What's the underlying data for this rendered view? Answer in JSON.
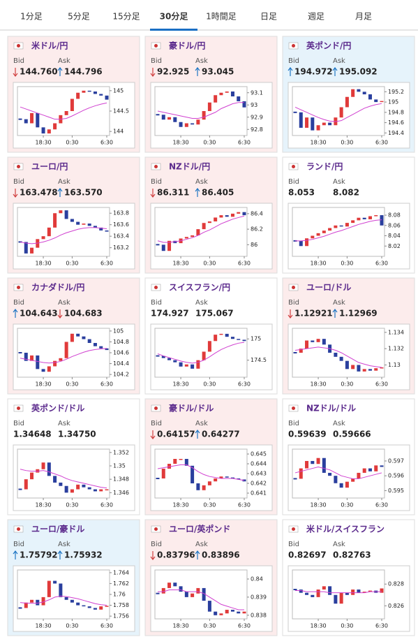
{
  "tabs": {
    "items": [
      "1分足",
      "5分足",
      "15分足",
      "30分足",
      "1時間足",
      "日足",
      "週足",
      "月足"
    ],
    "active": 3
  },
  "labels": {
    "bid": "Bid",
    "ask": "Ask"
  },
  "chart_xlim": [
    0,
    15
  ],
  "chart_xticks": [
    {
      "value": 4,
      "label": "18:30"
    },
    {
      "value": 9,
      "label": "0:30"
    },
    {
      "value": 15,
      "label": "6:30"
    }
  ],
  "panels": [
    {
      "title": "米ドル/円",
      "bid": "144.760",
      "ask": "144.796",
      "bid_dir": "down",
      "ask_dir": "up",
      "background": "#fcecec",
      "chart": {
        "ylim": [
          143.9,
          145.1
        ],
        "yticks": [
          144,
          144.5,
          145
        ],
        "close": [
          144.3,
          144.2,
          144.45,
          144.1,
          143.95,
          144.05,
          144.2,
          144.4,
          144.5,
          144.8,
          144.95,
          145.0,
          144.98,
          144.92,
          144.88,
          144.78
        ],
        "ma": [
          144.6,
          144.55,
          144.5,
          144.45,
          144.4,
          144.35,
          144.3,
          144.3,
          144.32,
          144.38,
          144.45,
          144.52,
          144.58,
          144.63,
          144.67,
          144.7
        ]
      }
    },
    {
      "title": "豪ドル/円",
      "bid": "92.925",
      "ask": "93.045",
      "bid_dir": "down",
      "ask_dir": "up",
      "background": "#fcecec",
      "chart": {
        "ylim": [
          92.75,
          93.15
        ],
        "yticks": [
          92.8,
          92.9,
          93,
          93.1
        ],
        "close": [
          92.92,
          92.88,
          92.9,
          92.86,
          92.82,
          92.85,
          92.84,
          92.88,
          92.95,
          93.02,
          93.08,
          93.1,
          93.11,
          93.07,
          93.03,
          92.98
        ],
        "ma": [
          92.95,
          92.94,
          92.93,
          92.92,
          92.91,
          92.9,
          92.89,
          92.89,
          92.9,
          92.92,
          92.94,
          92.97,
          92.99,
          93.01,
          93.02,
          93.02
        ]
      }
    },
    {
      "title": "英ポンド/円",
      "bid": "194.972",
      "ask": "195.092",
      "bid_dir": "up",
      "ask_dir": "up",
      "background": "#e6f3fb",
      "chart": {
        "ylim": [
          194.35,
          195.3
        ],
        "yticks": [
          194.4,
          194.6,
          194.8,
          195,
          195.2
        ],
        "close": [
          194.8,
          194.5,
          194.7,
          194.45,
          194.55,
          194.6,
          194.55,
          194.7,
          194.9,
          195.1,
          195.25,
          195.2,
          195.15,
          195.05,
          195.0,
          195.02
        ],
        "ma": [
          194.9,
          194.85,
          194.8,
          194.75,
          194.7,
          194.66,
          194.63,
          194.62,
          194.64,
          194.7,
          194.76,
          194.82,
          194.88,
          194.92,
          194.95,
          194.97
        ]
      }
    },
    {
      "title": "ユーロ/円",
      "bid": "163.478",
      "ask": "163.570",
      "bid_dir": "down",
      "ask_dir": "up",
      "background": "#fcecec",
      "chart": {
        "ylim": [
          163.05,
          163.9
        ],
        "yticks": [
          163.2,
          163.4,
          163.6,
          163.8
        ],
        "close": [
          163.3,
          163.1,
          163.2,
          163.35,
          163.4,
          163.55,
          163.8,
          163.85,
          163.7,
          163.65,
          163.6,
          163.62,
          163.58,
          163.55,
          163.5,
          163.48
        ],
        "ma": [
          163.3,
          163.28,
          163.27,
          163.28,
          163.3,
          163.33,
          163.37,
          163.42,
          163.46,
          163.49,
          163.52,
          163.54,
          163.55,
          163.55,
          163.54,
          163.53
        ]
      }
    },
    {
      "title": "NZドル/円",
      "bid": "86.311",
      "ask": "86.405",
      "bid_dir": "down",
      "ask_dir": "up",
      "background": "#fcecec",
      "chart": {
        "ylim": [
          85.85,
          86.48
        ],
        "yticks": [
          86,
          86.2,
          86.4
        ],
        "close": [
          86.0,
          85.92,
          86.05,
          86.02,
          86.08,
          86.1,
          86.12,
          86.2,
          86.28,
          86.3,
          86.35,
          86.38,
          86.36,
          86.4,
          86.42,
          86.38
        ],
        "ma": [
          86.05,
          86.03,
          86.03,
          86.04,
          86.05,
          86.07,
          86.09,
          86.12,
          86.16,
          86.19,
          86.23,
          86.27,
          86.3,
          86.33,
          86.35,
          86.37
        ]
      }
    },
    {
      "title": "ランド/円",
      "bid": "8.053",
      "ask": "8.082",
      "bid_dir": "none",
      "ask_dir": "none",
      "background": "#ffffff",
      "chart": {
        "ylim": [
          8.0,
          8.095
        ],
        "yticks": [
          8.02,
          8.04,
          8.06,
          8.08
        ],
        "close": [
          8.03,
          8.02,
          8.035,
          8.04,
          8.045,
          8.05,
          8.055,
          8.06,
          8.058,
          8.065,
          8.07,
          8.075,
          8.072,
          8.078,
          8.08,
          8.06
        ],
        "ma": [
          8.03,
          8.03,
          8.031,
          8.033,
          8.036,
          8.039,
          8.043,
          8.047,
          8.05,
          8.054,
          8.058,
          8.062,
          8.065,
          8.068,
          8.07,
          8.071
        ]
      }
    },
    {
      "title": "カナダドル/円",
      "bid": "104.643",
      "ask": "104.683",
      "bid_dir": "up",
      "ask_dir": "down",
      "background": "#fcecec",
      "chart": {
        "ylim": [
          104.15,
          105.05
        ],
        "yticks": [
          104.2,
          104.4,
          104.6,
          104.8,
          105
        ],
        "close": [
          104.6,
          104.45,
          104.55,
          104.3,
          104.25,
          104.35,
          104.45,
          104.5,
          104.8,
          104.95,
          104.9,
          104.85,
          104.78,
          104.72,
          104.68,
          104.65
        ],
        "ma": [
          104.5,
          104.48,
          104.46,
          104.44,
          104.42,
          104.41,
          104.42,
          104.44,
          104.48,
          104.53,
          104.57,
          104.61,
          104.64,
          104.66,
          104.67,
          104.68
        ]
      }
    },
    {
      "title": "スイスフラン/円",
      "bid": "174.927",
      "ask": "175.067",
      "bid_dir": "none",
      "ask_dir": "none",
      "background": "#ffffff",
      "chart": {
        "ylim": [
          174.1,
          175.25
        ],
        "yticks": [
          174.5,
          175
        ],
        "close": [
          174.6,
          174.55,
          174.5,
          174.45,
          174.35,
          174.4,
          174.3,
          174.5,
          174.7,
          174.95,
          175.1,
          175.12,
          175.05,
          175.0,
          174.98,
          174.95
        ],
        "ma": [
          174.65,
          174.6,
          174.56,
          174.52,
          174.48,
          174.45,
          174.43,
          174.45,
          174.5,
          174.58,
          174.67,
          174.75,
          174.81,
          174.86,
          174.9,
          174.92
        ]
      }
    },
    {
      "title": "ユーロ/ドル",
      "bid": "1.12921",
      "ask": "1.12969",
      "bid_dir": "down",
      "ask_dir": "up",
      "background": "#fcecec",
      "chart": {
        "ylim": [
          1.1285,
          1.1345
        ],
        "yticks": [
          1.13,
          1.132,
          1.134
        ],
        "close": [
          1.1315,
          1.132,
          1.133,
          1.1328,
          1.1332,
          1.1325,
          1.1315,
          1.131,
          1.1305,
          1.1295,
          1.13,
          1.1292,
          1.1295,
          1.1293,
          1.1296,
          1.1297
        ],
        "ma": [
          1.1318,
          1.1319,
          1.132,
          1.1321,
          1.1322,
          1.1321,
          1.132,
          1.1318,
          1.1315,
          1.1311,
          1.1307,
          1.1303,
          1.1301,
          1.1299,
          1.1298,
          1.1297
        ]
      }
    },
    {
      "title": "英ポンド/ドル",
      "bid": "1.34648",
      "ask": "1.34750",
      "bid_dir": "none",
      "ask_dir": "none",
      "background": "#ffffff",
      "chart": {
        "ylim": [
          1.3452,
          1.3525
        ],
        "yticks": [
          1.346,
          1.348,
          1.35,
          1.352
        ],
        "close": [
          1.3465,
          1.348,
          1.349,
          1.3495,
          1.3505,
          1.3485,
          1.3475,
          1.347,
          1.346,
          1.3465,
          1.3472,
          1.3468,
          1.3465,
          1.3462,
          1.3465,
          1.3465
        ],
        "ma": [
          1.3495,
          1.3493,
          1.3492,
          1.3492,
          1.3493,
          1.3491,
          1.3488,
          1.3485,
          1.3481,
          1.3478,
          1.3476,
          1.3474,
          1.3472,
          1.347,
          1.3468,
          1.3467
        ]
      }
    },
    {
      "title": "豪ドル/ドル",
      "bid": "0.64157",
      "ask": "0.64277",
      "bid_dir": "down",
      "ask_dir": "up",
      "background": "#fcecec",
      "chart": {
        "ylim": [
          0.6405,
          0.6455
        ],
        "yticks": [
          0.641,
          0.642,
          0.643,
          0.644,
          0.645
        ],
        "close": [
          0.6425,
          0.6435,
          0.644,
          0.6445,
          0.6445,
          0.6438,
          0.642,
          0.6413,
          0.6418,
          0.6422,
          0.6425,
          0.6427,
          0.6426,
          0.6425,
          0.6424,
          0.6422
        ],
        "ma": [
          0.6435,
          0.6436,
          0.6437,
          0.6438,
          0.6439,
          0.6439,
          0.6436,
          0.6432,
          0.6429,
          0.6427,
          0.6426,
          0.6425,
          0.6425,
          0.6425,
          0.6424,
          0.6423
        ]
      }
    },
    {
      "title": "NZドル/ドル",
      "bid": "0.59639",
      "ask": "0.59666",
      "bid_dir": "none",
      "ask_dir": "none",
      "background": "#ffffff",
      "chart": {
        "ylim": [
          0.5945,
          0.5978
        ],
        "yticks": [
          0.595,
          0.596,
          0.597
        ],
        "close": [
          0.5958,
          0.5965,
          0.597,
          0.5968,
          0.5972,
          0.5962,
          0.596,
          0.5955,
          0.5952,
          0.5956,
          0.5958,
          0.5962,
          0.5965,
          0.5963,
          0.5967,
          0.5966
        ],
        "ma": [
          0.5962,
          0.5963,
          0.5964,
          0.5965,
          0.5966,
          0.5965,
          0.5964,
          0.5962,
          0.596,
          0.5959,
          0.5958,
          0.5958,
          0.5959,
          0.596,
          0.5961,
          0.5962
        ]
      }
    },
    {
      "title": "ユーロ/豪ドル",
      "bid": "1.75792",
      "ask": "1.75932",
      "bid_dir": "up",
      "ask_dir": "up",
      "background": "#e6f3fb",
      "chart": {
        "ylim": [
          1.7555,
          1.7645
        ],
        "yticks": [
          1.756,
          1.758,
          1.76,
          1.762,
          1.764
        ],
        "close": [
          1.7575,
          1.7585,
          1.759,
          1.758,
          1.7595,
          1.7625,
          1.762,
          1.7595,
          1.759,
          1.7585,
          1.758,
          1.7578,
          1.7575,
          1.7572,
          1.7578,
          1.7579
        ],
        "ma": [
          1.7585,
          1.7584,
          1.7584,
          1.7584,
          1.7586,
          1.759,
          1.7595,
          1.7597,
          1.7596,
          1.7594,
          1.7592,
          1.7589,
          1.7586,
          1.7583,
          1.7581,
          1.758
        ]
      }
    },
    {
      "title": "ユーロ/英ポンド",
      "bid": "0.83796",
      "ask": "0.83896",
      "bid_dir": "down",
      "ask_dir": "up",
      "background": "#fcecec",
      "chart": {
        "ylim": [
          0.8378,
          0.8405
        ],
        "yticks": [
          0.838,
          0.839,
          0.84
        ],
        "close": [
          0.8392,
          0.8395,
          0.8398,
          0.8396,
          0.8393,
          0.839,
          0.8392,
          0.8395,
          0.8388,
          0.8382,
          0.838,
          0.8381,
          0.8383,
          0.8382,
          0.8381,
          0.8382
        ],
        "ma": [
          0.8393,
          0.8393,
          0.8394,
          0.8394,
          0.8394,
          0.8393,
          0.8393,
          0.8393,
          0.8392,
          0.839,
          0.8388,
          0.8386,
          0.8385,
          0.8384,
          0.8383,
          0.8383
        ]
      }
    },
    {
      "title": "米ドル/スイスフラン",
      "bid": "0.82697",
      "ask": "0.82763",
      "bid_dir": "none",
      "ask_dir": "none",
      "background": "#ffffff",
      "chart": {
        "ylim": [
          0.8248,
          0.8293
        ],
        "yticks": [
          0.826,
          0.828
        ],
        "close": [
          0.8275,
          0.8272,
          0.827,
          0.8268,
          0.8275,
          0.8278,
          0.827,
          0.8262,
          0.8272,
          0.827,
          0.8275,
          0.8272,
          0.8273,
          0.8274,
          0.8272,
          0.8276
        ],
        "ma": [
          0.8274,
          0.8274,
          0.8273,
          0.8273,
          0.8273,
          0.8273,
          0.8272,
          0.8272,
          0.8272,
          0.8272,
          0.8272,
          0.8272,
          0.8272,
          0.8273,
          0.8273,
          0.8273
        ]
      }
    }
  ]
}
